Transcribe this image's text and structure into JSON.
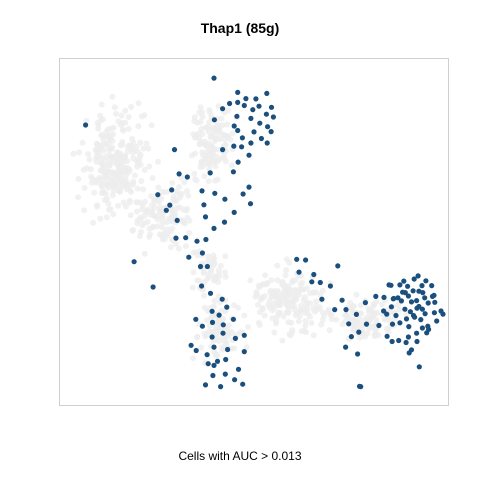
{
  "chart_data": {
    "type": "scatter",
    "title": "Thap1 (85g)",
    "caption": "Cells with AUC > 0.013",
    "xlabel": "",
    "ylabel": "",
    "xlim": [
      0,
      1
    ],
    "ylim": [
      0,
      1
    ],
    "grid": false,
    "legend": "none",
    "colors": {
      "highlight": "#1b4f7d",
      "background": "#ececec",
      "frame": "#cfcfcf"
    },
    "series": [
      {
        "values": [
          [
            0.066,
            0.807
          ],
          [
            0.397,
            0.942
          ],
          [
            0.437,
            0.869
          ],
          [
            0.419,
            0.854
          ],
          [
            0.398,
            0.822
          ],
          [
            0.456,
            0.832
          ],
          [
            0.449,
            0.804
          ],
          [
            0.458,
            0.872
          ],
          [
            0.458,
            0.901
          ],
          [
            0.475,
            0.863
          ],
          [
            0.492,
            0.826
          ],
          [
            0.497,
            0.851
          ],
          [
            0.5,
            0.787
          ],
          [
            0.513,
            0.861
          ],
          [
            0.515,
            0.812
          ],
          [
            0.519,
            0.768
          ],
          [
            0.492,
            0.755
          ],
          [
            0.487,
            0.72
          ],
          [
            0.458,
            0.791
          ],
          [
            0.448,
            0.746
          ],
          [
            0.419,
            0.736
          ],
          [
            0.534,
            0.755
          ],
          [
            0.533,
            0.898
          ],
          [
            0.545,
            0.858
          ],
          [
            0.55,
            0.83
          ],
          [
            0.532,
            0.838
          ],
          [
            0.479,
            0.883
          ],
          [
            0.505,
            0.882
          ],
          [
            0.535,
            0.802
          ],
          [
            0.544,
            0.788
          ],
          [
            0.47,
            0.77
          ],
          [
            0.468,
            0.744
          ],
          [
            0.459,
            0.7
          ],
          [
            0.447,
            0.672
          ],
          [
            0.487,
            0.628
          ],
          [
            0.472,
            0.608
          ],
          [
            0.491,
            0.58
          ],
          [
            0.449,
            0.555
          ],
          [
            0.424,
            0.527
          ],
          [
            0.425,
            0.593
          ],
          [
            0.399,
            0.61
          ],
          [
            0.366,
            0.617
          ],
          [
            0.371,
            0.577
          ],
          [
            0.375,
            0.542
          ],
          [
            0.397,
            0.509
          ],
          [
            0.295,
            0.736
          ],
          [
            0.288,
            0.62
          ],
          [
            0.252,
            0.606
          ],
          [
            0.283,
            0.576
          ],
          [
            0.302,
            0.532
          ],
          [
            0.299,
            0.481
          ],
          [
            0.324,
            0.482
          ],
          [
            0.353,
            0.472
          ],
          [
            0.332,
            0.426
          ],
          [
            0.376,
            0.477
          ],
          [
            0.38,
            0.399
          ],
          [
            0.362,
            0.399
          ],
          [
            0.367,
            0.438
          ],
          [
            0.274,
            0.561
          ],
          [
            0.307,
            0.666
          ],
          [
            0.328,
            0.657
          ],
          [
            0.387,
            0.669
          ],
          [
            0.191,
            0.413
          ],
          [
            0.24,
            0.34
          ],
          [
            0.365,
            0.343
          ],
          [
            0.388,
            0.322
          ],
          [
            0.392,
            0.27
          ],
          [
            0.418,
            0.305
          ],
          [
            0.41,
            0.259
          ],
          [
            0.421,
            0.231
          ],
          [
            0.42,
            0.207
          ],
          [
            0.392,
            0.196
          ],
          [
            0.393,
            0.238
          ],
          [
            0.43,
            0.282
          ],
          [
            0.447,
            0.247
          ],
          [
            0.367,
            0.227
          ],
          [
            0.35,
            0.247
          ],
          [
            0.338,
            0.172
          ],
          [
            0.351,
            0.157
          ],
          [
            0.379,
            0.145
          ],
          [
            0.382,
            0.119
          ],
          [
            0.397,
            0.114
          ],
          [
            0.406,
            0.126
          ],
          [
            0.394,
            0.085
          ],
          [
            0.432,
            0.16
          ],
          [
            0.427,
            0.131
          ],
          [
            0.45,
            0.073
          ],
          [
            0.46,
            0.103
          ],
          [
            0.375,
            0.058
          ],
          [
            0.426,
            0.089
          ],
          [
            0.414,
            0.053
          ],
          [
            0.397,
            0.167
          ],
          [
            0.475,
            0.201
          ],
          [
            0.475,
            0.154
          ],
          [
            0.452,
            0.192
          ],
          [
            0.471,
            0.06
          ],
          [
            0.61,
            0.42
          ],
          [
            0.616,
            0.383
          ],
          [
            0.633,
            0.418
          ],
          [
            0.649,
            0.355
          ],
          [
            0.654,
            0.376
          ],
          [
            0.671,
            0.353
          ],
          [
            0.675,
            0.305
          ],
          [
            0.697,
            0.343
          ],
          [
            0.716,
            0.401
          ],
          [
            0.727,
            0.302
          ],
          [
            0.737,
            0.275
          ],
          [
            0.708,
            0.275
          ],
          [
            0.744,
            0.234
          ],
          [
            0.751,
            0.197
          ],
          [
            0.736,
            0.167
          ],
          [
            0.767,
            0.147
          ],
          [
            0.787,
            0.295
          ],
          [
            0.764,
            0.261
          ],
          [
            0.79,
            0.233
          ],
          [
            0.77,
            0.21
          ],
          [
            0.772,
            0.054
          ],
          [
            0.775,
            0.053
          ],
          [
            0.835,
            0.31
          ],
          [
            0.834,
            0.271
          ],
          [
            0.822,
            0.229
          ],
          [
            0.843,
            0.198
          ],
          [
            0.856,
            0.183
          ],
          [
            0.857,
            0.233
          ],
          [
            0.859,
            0.306
          ],
          [
            0.848,
            0.346
          ],
          [
            0.853,
            0.345
          ],
          [
            0.86,
            0.307
          ],
          [
            0.876,
            0.346
          ],
          [
            0.88,
            0.3
          ],
          [
            0.883,
            0.325
          ],
          [
            0.889,
            0.276
          ],
          [
            0.898,
            0.314
          ],
          [
            0.903,
            0.269
          ],
          [
            0.914,
            0.253
          ],
          [
            0.919,
            0.301
          ],
          [
            0.925,
            0.284
          ],
          [
            0.935,
            0.324
          ],
          [
            0.941,
            0.263
          ],
          [
            0.949,
            0.294
          ],
          [
            0.96,
            0.313
          ],
          [
            0.966,
            0.296
          ],
          [
            0.965,
            0.266
          ],
          [
            0.971,
            0.242
          ],
          [
            0.948,
            0.227
          ],
          [
            0.934,
            0.222
          ],
          [
            0.919,
            0.207
          ],
          [
            0.899,
            0.226
          ],
          [
            0.898,
            0.196
          ],
          [
            0.892,
            0.18
          ],
          [
            0.893,
            0.248
          ],
          [
            0.876,
            0.237
          ],
          [
            0.911,
            0.258
          ],
          [
            0.906,
            0.297
          ],
          [
            0.925,
            0.328
          ],
          [
            0.91,
            0.329
          ],
          [
            0.886,
            0.357
          ],
          [
            0.913,
            0.363
          ],
          [
            0.923,
            0.372
          ],
          [
            0.943,
            0.358
          ],
          [
            0.933,
            0.344
          ],
          [
            0.958,
            0.344
          ],
          [
            0.896,
            0.342
          ],
          [
            0.92,
            0.279
          ],
          [
            0.906,
            0.159
          ],
          [
            0.9,
            0.15
          ],
          [
            0.926,
            0.11
          ],
          [
            0.95,
            0.218
          ],
          [
            0.982,
            0.271
          ],
          [
            0.987,
            0.262
          ],
          [
            0.945,
            0.208
          ],
          [
            0.92,
            0.183
          ],
          [
            0.814,
            0.313
          ],
          [
            0.854,
            0.283
          ],
          [
            0.873,
            0.186
          ],
          [
            0.871,
            0.309
          ],
          [
            0.89,
            0.324
          ],
          [
            0.93,
            0.246
          ],
          [
            0.934,
            0.276
          ],
          [
            0.94,
            0.309
          ],
          [
            0.964,
            0.316
          ],
          [
            0.866,
            0.258
          ],
          [
            0.842,
            0.262
          ]
        ]
      }
    ]
  }
}
